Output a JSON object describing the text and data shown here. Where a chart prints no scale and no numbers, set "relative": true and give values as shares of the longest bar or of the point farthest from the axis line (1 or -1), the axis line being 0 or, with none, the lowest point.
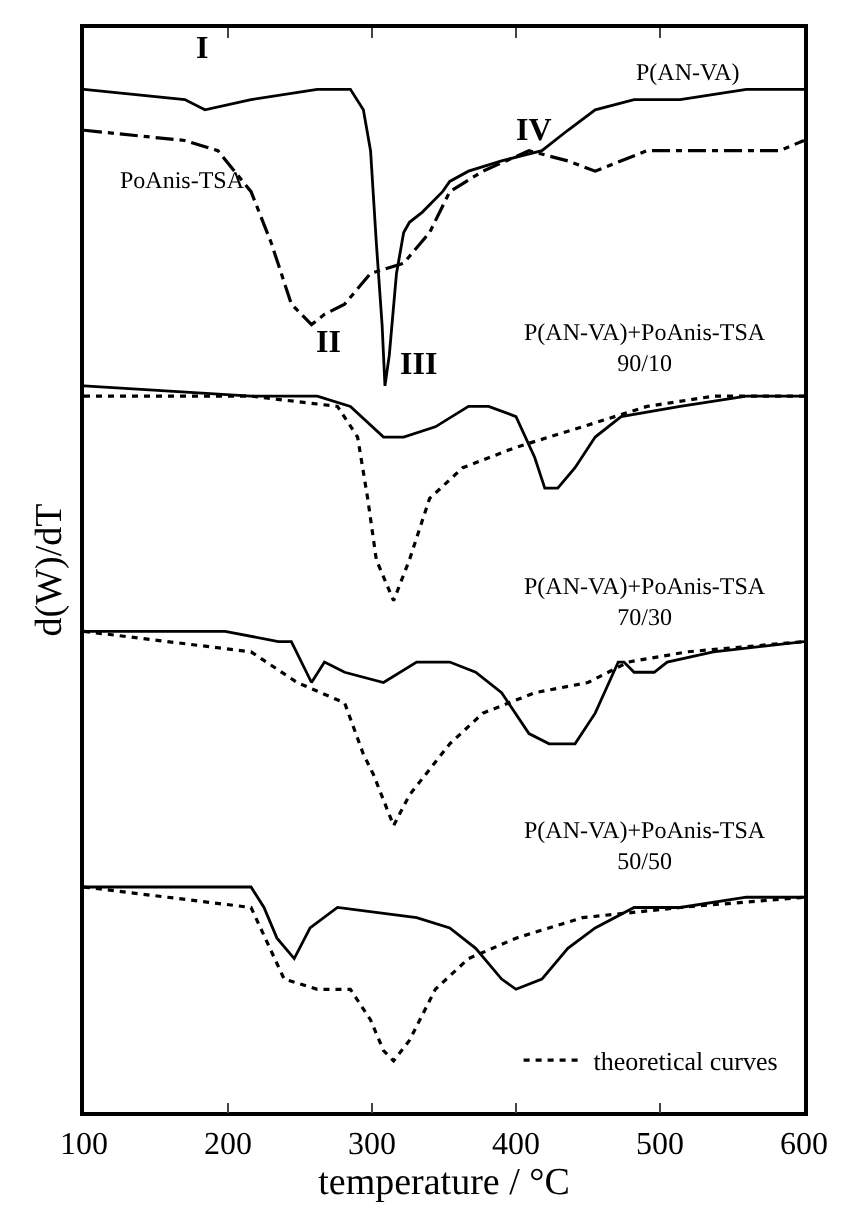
{
  "chart_data": {
    "type": "line",
    "relative": true,
    "xlabel": "temperature / °C",
    "ylabel": "d(W)/dT",
    "xlim": [
      100,
      600
    ],
    "xticks": [
      100,
      200,
      300,
      400,
      500,
      600
    ],
    "legend": "bottom right",
    "marker": "none",
    "series": [
      {
        "color": "#000000",
        "line_style": "solid",
        "x": [
          100,
          170,
          184,
          216,
          262,
          285,
          294,
          299,
          303,
          307,
          309,
          312,
          317,
          322,
          326,
          335,
          349,
          354,
          367,
          390,
          418,
          436,
          455,
          482,
          514,
          560,
          600
        ],
        "values": [
          1.0,
          0.99,
          0.98,
          0.99,
          1.0,
          1.0,
          0.98,
          0.94,
          0.85,
          0.77,
          0.71,
          0.74,
          0.82,
          0.86,
          0.87,
          0.88,
          0.9,
          0.91,
          0.92,
          0.93,
          0.94,
          0.96,
          0.98,
          0.99,
          0.99,
          1.0,
          1.0
        ]
      },
      {
        "color": "#000000",
        "line_style": "dashdot",
        "x": [
          100,
          170,
          193,
          216,
          230,
          244,
          258,
          267,
          281,
          299,
          322,
          340,
          354,
          377,
          409,
          436,
          455,
          491,
          537,
          583,
          600
        ],
        "values": [
          0.96,
          0.95,
          0.94,
          0.9,
          0.85,
          0.79,
          0.77,
          0.78,
          0.79,
          0.82,
          0.83,
          0.86,
          0.9,
          0.92,
          0.94,
          0.93,
          0.92,
          0.94,
          0.94,
          0.94,
          0.95
        ]
      },
      {
        "color": "#000000",
        "line_style": "solid",
        "x": [
          100,
          216,
          262,
          285,
          308,
          322,
          344,
          367,
          381,
          400,
          413,
          420,
          429,
          441,
          455,
          473,
          514,
          560,
          600
        ],
        "values": [
          0.71,
          0.7,
          0.7,
          0.69,
          0.66,
          0.66,
          0.67,
          0.69,
          0.69,
          0.68,
          0.64,
          0.61,
          0.61,
          0.63,
          0.66,
          0.68,
          0.69,
          0.7,
          0.7
        ]
      },
      {
        "name": "theoretical curves",
        "color": "#000000",
        "line_style": "dotted",
        "x": [
          100,
          216,
          276,
          290,
          297,
          303,
          315,
          326,
          340,
          363,
          400,
          446,
          491,
          537,
          600
        ],
        "values": [
          0.7,
          0.7,
          0.69,
          0.66,
          0.6,
          0.54,
          0.5,
          0.54,
          0.6,
          0.63,
          0.65,
          0.67,
          0.69,
          0.7,
          0.7
        ]
      },
      {
        "color": "#000000",
        "line_style": "solid",
        "x": [
          100,
          198,
          235,
          244,
          258,
          267,
          281,
          308,
          331,
          354,
          372,
          390,
          409,
          423,
          441,
          455,
          471,
          475,
          482,
          496,
          505,
          537,
          600
        ],
        "values": [
          0.47,
          0.47,
          0.46,
          0.46,
          0.42,
          0.44,
          0.43,
          0.42,
          0.44,
          0.44,
          0.43,
          0.41,
          0.37,
          0.36,
          0.36,
          0.39,
          0.44,
          0.44,
          0.43,
          0.43,
          0.44,
          0.45,
          0.46
        ]
      },
      {
        "color": "#000000",
        "line_style": "dotted",
        "x": [
          100,
          216,
          248,
          281,
          294,
          301,
          315,
          326,
          354,
          377,
          413,
          450,
          478,
          519,
          600
        ],
        "values": [
          0.47,
          0.45,
          0.42,
          0.4,
          0.35,
          0.33,
          0.28,
          0.31,
          0.36,
          0.39,
          0.41,
          0.42,
          0.44,
          0.45,
          0.46
        ]
      },
      {
        "color": "#000000",
        "line_style": "solid",
        "x": [
          100,
          194,
          216,
          225,
          234,
          246,
          257,
          276,
          331,
          354,
          372,
          390,
          400,
          418,
          436,
          455,
          482,
          514,
          560,
          600
        ],
        "values": [
          0.22,
          0.22,
          0.22,
          0.2,
          0.17,
          0.15,
          0.18,
          0.2,
          0.19,
          0.18,
          0.16,
          0.13,
          0.12,
          0.13,
          0.16,
          0.18,
          0.2,
          0.2,
          0.21,
          0.21
        ]
      },
      {
        "color": "#000000",
        "line_style": "dotted",
        "x": [
          100,
          216,
          239,
          262,
          285,
          299,
          308,
          315,
          326,
          344,
          367,
          400,
          446,
          514,
          600
        ],
        "values": [
          0.22,
          0.2,
          0.13,
          0.12,
          0.12,
          0.09,
          0.06,
          0.05,
          0.07,
          0.12,
          0.15,
          0.17,
          0.19,
          0.2,
          0.21
        ]
      }
    ],
    "annotations": [
      "I",
      "II",
      "III",
      "IV",
      "P(AN-VA)",
      "PoAnis-TSA",
      "P(AN-VA)+PoAnis-TSA\n90/10",
      "P(AN-VA)+PoAnis-TSA\n70/30",
      "P(AN-VA)+PoAnis-TSA\n50/50"
    ]
  }
}
